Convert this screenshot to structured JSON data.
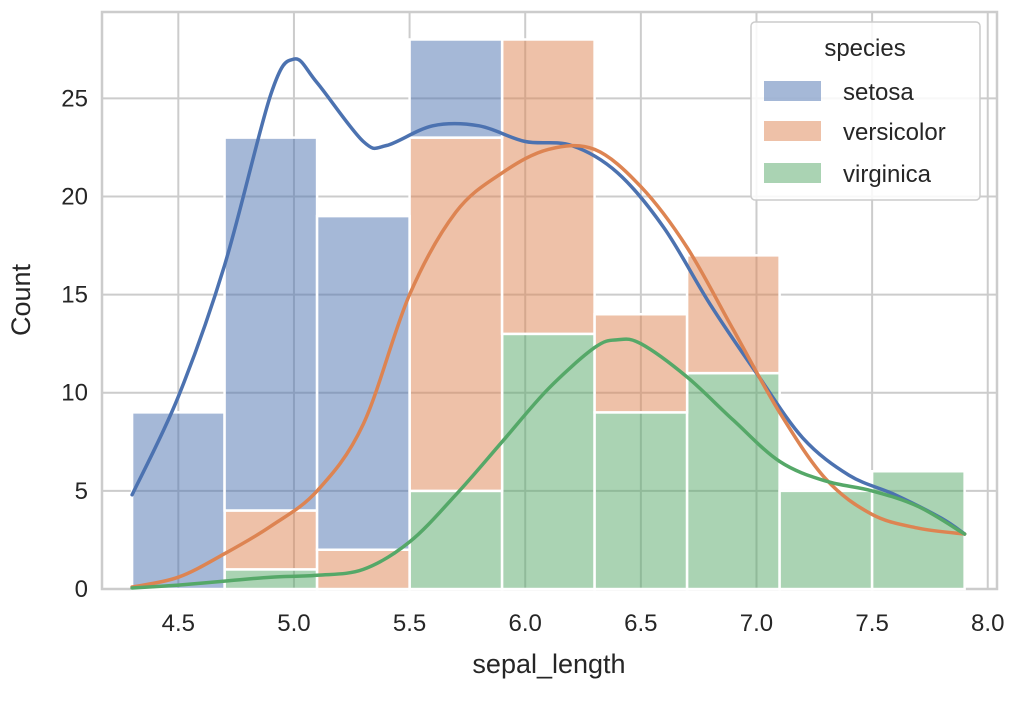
{
  "chart_data": {
    "type": "bar",
    "subtype": "stacked-histogram-with-kde",
    "title": "",
    "xlabel": "sepal_length",
    "ylabel": "Count",
    "xlim": [
      4.17,
      8.04
    ],
    "ylim": [
      0,
      29.4
    ],
    "x_ticks": [
      4.5,
      5.0,
      5.5,
      6.0,
      6.5,
      7.0,
      7.5,
      8.0
    ],
    "x_tick_labels": [
      "4.5",
      "5.0",
      "5.5",
      "6.0",
      "6.5",
      "7.0",
      "7.5",
      "8.0"
    ],
    "y_ticks": [
      0,
      5,
      10,
      15,
      20,
      25
    ],
    "y_tick_labels": [
      "0",
      "5",
      "10",
      "15",
      "20",
      "25"
    ],
    "grid": true,
    "bin_edges": [
      4.3,
      4.7,
      5.1,
      5.5,
      5.9,
      6.3,
      6.7,
      7.1,
      7.5,
      7.9
    ],
    "stack_order": [
      "virginica",
      "versicolor",
      "setosa"
    ],
    "series": [
      {
        "name": "setosa",
        "color": "#4c72b0",
        "values": [
          9,
          19,
          17,
          5,
          0,
          0,
          0,
          0,
          0
        ],
        "kde": {
          "x": [
            4.3,
            4.5,
            4.7,
            4.9,
            5.0,
            5.1,
            5.3,
            5.4,
            5.6,
            5.8,
            6.0,
            6.2,
            6.4,
            6.6,
            6.8,
            7.0,
            7.2,
            7.4,
            7.6,
            7.8,
            7.9
          ],
          "y": [
            4.8,
            9.8,
            16.5,
            25.2,
            27.0,
            25.8,
            22.8,
            22.6,
            23.6,
            23.6,
            22.8,
            22.6,
            21.2,
            18.4,
            14.5,
            11.0,
            7.7,
            5.8,
            4.8,
            3.6,
            2.8
          ]
        }
      },
      {
        "name": "versicolor",
        "color": "#dd8452",
        "values": [
          0,
          3,
          2,
          18,
          15,
          5,
          6,
          0,
          0
        ],
        "kde": {
          "x": [
            4.3,
            4.5,
            4.7,
            4.9,
            5.1,
            5.3,
            5.5,
            5.7,
            5.9,
            6.1,
            6.3,
            6.5,
            6.7,
            6.9,
            7.1,
            7.3,
            7.5,
            7.7,
            7.9
          ],
          "y": [
            0.1,
            0.6,
            1.8,
            3.2,
            5.0,
            8.4,
            15.0,
            19.2,
            21.2,
            22.4,
            22.4,
            20.5,
            17.4,
            13.2,
            9.0,
            5.6,
            3.8,
            3.1,
            2.8
          ]
        }
      },
      {
        "name": "virginica",
        "color": "#55a868",
        "values": [
          0,
          1,
          0,
          5,
          13,
          9,
          11,
          5,
          6
        ],
        "kde": {
          "x": [
            4.3,
            4.5,
            4.7,
            4.9,
            5.1,
            5.3,
            5.5,
            5.7,
            5.9,
            6.1,
            6.3,
            6.4,
            6.5,
            6.7,
            6.9,
            7.1,
            7.3,
            7.5,
            7.7,
            7.9
          ],
          "y": [
            0.05,
            0.2,
            0.4,
            0.6,
            0.7,
            1.0,
            2.4,
            4.8,
            7.5,
            10.2,
            12.3,
            12.7,
            12.5,
            10.8,
            8.6,
            6.5,
            5.5,
            5.0,
            4.2,
            2.8
          ]
        }
      }
    ],
    "legend": {
      "title": "species",
      "entries": [
        "setosa",
        "versicolor",
        "virginica"
      ],
      "position": "top-right"
    }
  }
}
